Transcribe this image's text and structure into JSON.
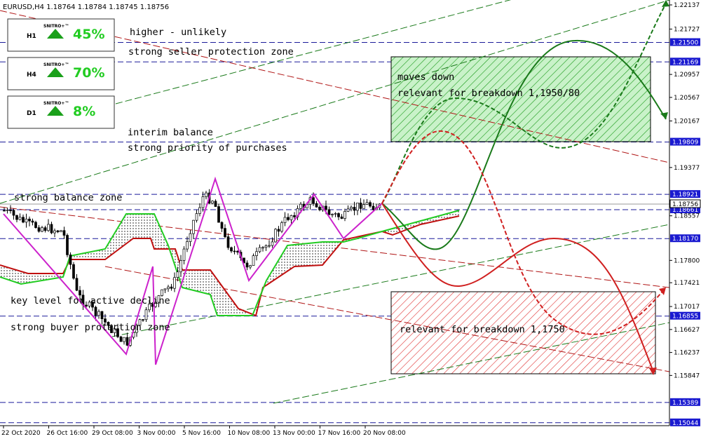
{
  "header": {
    "symbol": "EURUSD,H4  1.18764 1.18784 1.18745 1.18756"
  },
  "price_axis": [
    "1.22137",
    "1.21727",
    "1.20957",
    "1.20567",
    "1.20167",
    "1.19377",
    "1.18557",
    "1.17800",
    "1.17421",
    "1.17017",
    "1.16627",
    "1.16237",
    "1.15847"
  ],
  "level_labels": [
    "1.21500",
    "1.21169",
    "1.19809",
    "1.18921",
    "1.18661",
    "1.18170",
    "1.16855",
    "1.15389",
    "1.15044"
  ],
  "current_price": "1.18756",
  "time_axis": [
    "22 Oct 2020",
    "26 Oct 16:00",
    "29 Oct 08:00",
    "3 Nov 00:00",
    "5 Nov 16:00",
    "10 Nov 08:00",
    "13 Nov 00:00",
    "17 Nov 16:00",
    "20 Nov 08:00"
  ],
  "widgets": [
    {
      "timeframe": "H1",
      "brand": "SNITRO+™",
      "percent": "45%"
    },
    {
      "timeframe": "H4",
      "brand": "SNITRO+™",
      "percent": "70%"
    },
    {
      "timeframe": "D1",
      "brand": "SNITRO+™",
      "percent": "8%"
    }
  ],
  "annotations": [
    "higher - unlikely",
    "strong seller protection zone",
    "interim balance",
    "strong priority of purchases",
    "strong balance zone",
    "key level for active decline",
    "strong buyer protection zone",
    "moves down",
    "relevant for breakdown 1,1950/80",
    "relevant for breakdown 1,1750"
  ]
}
